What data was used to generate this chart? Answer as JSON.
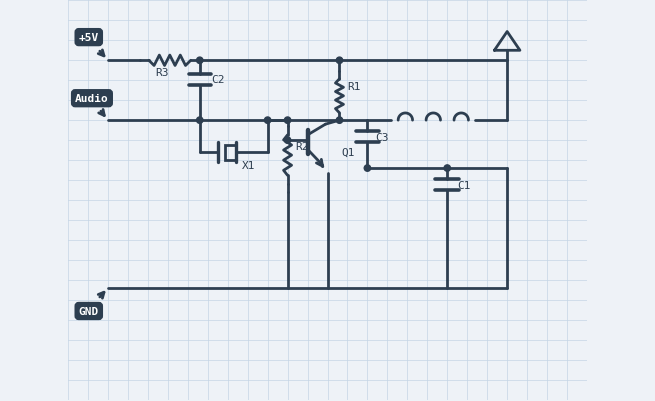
{
  "bg_color": "#eef2f7",
  "grid_color": "#c5d5e5",
  "line_color": "#2d3e50",
  "line_width": 2.0,
  "labels": {
    "vcc": "+5V",
    "audio": "Audio",
    "gnd": "GND",
    "R1": "R1",
    "R2": "R2",
    "R3": "R3",
    "C1": "C1",
    "C2": "C2",
    "C3": "C3",
    "X1": "X1",
    "Q1": "Q1"
  },
  "font_size": 8
}
